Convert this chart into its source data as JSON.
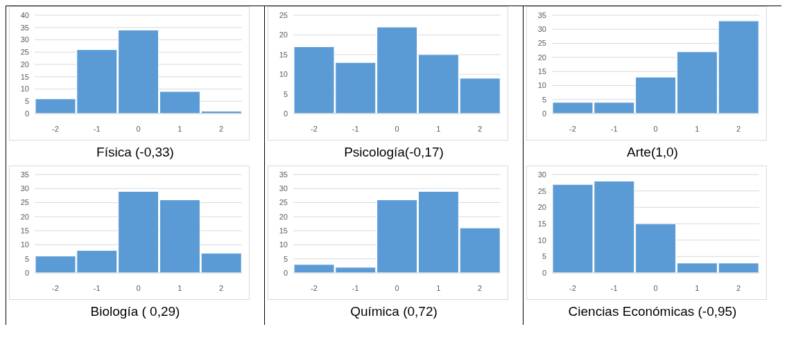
{
  "chart_data": [
    {
      "type": "bar",
      "title": "Física (-0,33)",
      "categories": [
        "-2",
        "-1",
        "0",
        "1",
        "2"
      ],
      "values": [
        6,
        26,
        34,
        9,
        1
      ],
      "color": "#5b9bd5",
      "ylim": [
        0,
        40
      ],
      "yticks": [
        0,
        5,
        10,
        15,
        20,
        25,
        30,
        35,
        40
      ],
      "grid": "y"
    },
    {
      "type": "bar",
      "title": "Psicología(-0,17)",
      "categories": [
        "-2",
        "-1",
        "0",
        "1",
        "2"
      ],
      "values": [
        17,
        13,
        22,
        15,
        9
      ],
      "color": "#5b9bd5",
      "ylim": [
        0,
        25
      ],
      "yticks": [
        0,
        5,
        10,
        15,
        20,
        25
      ],
      "grid": "y"
    },
    {
      "type": "bar",
      "title": "Arte(1,0)",
      "categories": [
        "-2",
        "-1",
        "0",
        "1",
        "2"
      ],
      "values": [
        4,
        4,
        13,
        22,
        33
      ],
      "color": "#5b9bd5",
      "ylim": [
        0,
        35
      ],
      "yticks": [
        0,
        5,
        10,
        15,
        20,
        25,
        30,
        35
      ],
      "grid": "y"
    },
    {
      "type": "bar",
      "title": "Biología ( 0,29)",
      "categories": [
        "-2",
        "-1",
        "0",
        "1",
        "2"
      ],
      "values": [
        6,
        8,
        29,
        26,
        7
      ],
      "color": "#5b9bd5",
      "ylim": [
        0,
        35
      ],
      "yticks": [
        0,
        5,
        10,
        15,
        20,
        25,
        30,
        35
      ],
      "grid": "y"
    },
    {
      "type": "bar",
      "title": "Química (0,72)",
      "categories": [
        "-2",
        "-1",
        "0",
        "1",
        "2"
      ],
      "values": [
        3,
        2,
        26,
        29,
        16
      ],
      "color": "#5b9bd5",
      "ylim": [
        0,
        35
      ],
      "yticks": [
        0,
        5,
        10,
        15,
        20,
        25,
        30,
        35
      ],
      "grid": "y"
    },
    {
      "type": "bar",
      "title": "Ciencias Económicas (-0,95)",
      "categories": [
        "-2",
        "-1",
        "0",
        "1",
        "2"
      ],
      "values": [
        27,
        28,
        15,
        3,
        3
      ],
      "color": "#5b9bd5",
      "ylim": [
        0,
        30
      ],
      "yticks": [
        0,
        5,
        10,
        15,
        20,
        25,
        30
      ],
      "grid": "y"
    }
  ]
}
